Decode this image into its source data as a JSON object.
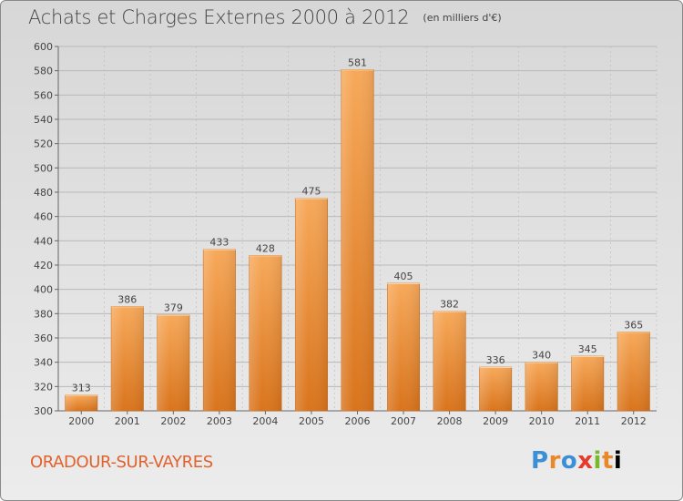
{
  "title": "Achats et Charges Externes 2000 à 2012",
  "subtitle": "(en milliers d'€)",
  "commune": "ORADOUR-SUR-VAYRES",
  "logo": {
    "text": "Proxiti"
  },
  "colors": {
    "bar_light": "#f7a95a",
    "bar_dark": "#d9741c",
    "grid": "#b9b9b9",
    "title": "#444444",
    "commune": "#e0622c"
  },
  "chart_data": {
    "type": "bar",
    "categories": [
      "2000",
      "2001",
      "2002",
      "2003",
      "2004",
      "2005",
      "2006",
      "2007",
      "2008",
      "2009",
      "2010",
      "2011",
      "2012"
    ],
    "values": [
      313,
      386,
      379,
      433,
      428,
      475,
      581,
      405,
      382,
      336,
      340,
      345,
      365
    ],
    "title": "Achats et Charges Externes 2000 à 2012",
    "xlabel": "",
    "ylabel": "",
    "ylim": [
      300,
      600
    ],
    "yticks": [
      300,
      320,
      340,
      360,
      380,
      400,
      420,
      440,
      460,
      480,
      500,
      520,
      540,
      560,
      580,
      600
    ],
    "grid": true,
    "data_labels": true
  }
}
